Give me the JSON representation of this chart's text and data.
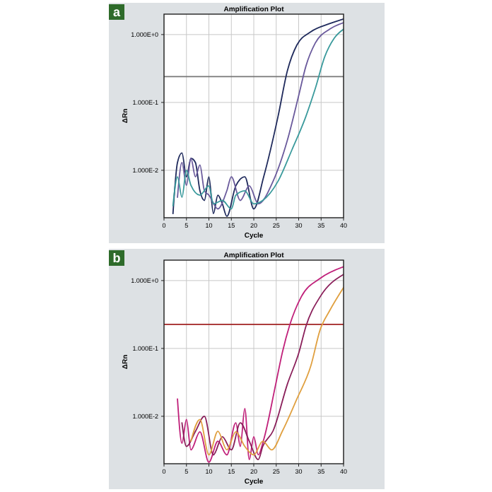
{
  "chart_data": [
    {
      "type": "line",
      "title": "Amplification Plot",
      "xlabel": "Cycle",
      "ylabel": "ΔRn",
      "annotations": [
        "a"
      ],
      "log": "y",
      "grid": true,
      "marker": "none",
      "line_style": "solid",
      "xlim": [
        0,
        40
      ],
      "xticks": [
        0,
        5,
        10,
        15,
        20,
        25,
        30,
        35,
        40
      ],
      "ylim": [
        0.002,
        2
      ],
      "yticks": [
        {
          "value": 1,
          "label": "1.000E+0"
        },
        {
          "value": 0.1,
          "label": "1.000E-1"
        },
        {
          "value": 0.01,
          "label": "1.000E-2"
        }
      ],
      "ref_lines": [
        {
          "axis": "y",
          "value": 0.24,
          "color": "#777777"
        }
      ],
      "series": [
        {
          "color": "#1f2a5c",
          "x": [
            2,
            3,
            4,
            5,
            6,
            7,
            8,
            9,
            10,
            11,
            12,
            13,
            14,
            16,
            18,
            20,
            22.2,
            25.4,
            27.5,
            29.6,
            32.7,
            36.9,
            40
          ],
          "values": [
            0.0023,
            0.013,
            0.018,
            0.008,
            0.015,
            0.013,
            0.005,
            0.0036,
            0.008,
            0.0023,
            0.0043,
            0.0032,
            0.0021,
            0.0059,
            0.008,
            0.0027,
            0.008,
            0.062,
            0.295,
            0.7,
            1.1,
            1.45,
            1.7
          ]
        },
        {
          "color": "#6a5a9c",
          "x": [
            3,
            4,
            5,
            6,
            7,
            8,
            9,
            10,
            12,
            14,
            15,
            17,
            19,
            21,
            24.3,
            27.5,
            30.1,
            31.6,
            33.7,
            36.9,
            40
          ],
          "values": [
            0.004,
            0.013,
            0.006,
            0.015,
            0.008,
            0.012,
            0.005,
            0.0043,
            0.0027,
            0.005,
            0.008,
            0.0036,
            0.0059,
            0.0032,
            0.0069,
            0.028,
            0.134,
            0.34,
            0.75,
            1.2,
            1.5
          ]
        },
        {
          "color": "#3a9a9c",
          "x": [
            2,
            3,
            4,
            5,
            6,
            8,
            10,
            11,
            13,
            15,
            16,
            18,
            20,
            22,
            25.4,
            28.5,
            31.6,
            33.7,
            35.8,
            37.9,
            40
          ],
          "values": [
            0.003,
            0.008,
            0.004,
            0.01,
            0.006,
            0.0043,
            0.0059,
            0.0032,
            0.0036,
            0.0027,
            0.0043,
            0.005,
            0.0032,
            0.0036,
            0.0069,
            0.02,
            0.062,
            0.16,
            0.47,
            0.88,
            1.2
          ]
        }
      ]
    },
    {
      "type": "line",
      "title": "Amplification Plot",
      "xlabel": "Cycle",
      "ylabel": "ΔRn",
      "annotations": [
        "b"
      ],
      "log": "y",
      "grid": true,
      "marker": "none",
      "line_style": "solid",
      "xlim": [
        0,
        40
      ],
      "xticks": [
        0,
        5,
        10,
        15,
        20,
        25,
        30,
        35,
        40
      ],
      "ylim": [
        0.002,
        2
      ],
      "yticks": [
        {
          "value": 1,
          "label": "1.000E+0"
        },
        {
          "value": 0.1,
          "label": "1.000E-1"
        },
        {
          "value": 0.01,
          "label": "1.000E-2"
        }
      ],
      "ref_lines": [
        {
          "axis": "y",
          "value": 0.226,
          "color": "#a02020"
        }
      ],
      "series": [
        {
          "color": "#c0207a",
          "x": [
            3,
            4,
            5,
            6,
            8,
            10,
            12,
            14,
            16,
            17,
            18,
            19,
            20,
            21,
            22.2,
            24.9,
            26.4,
            28,
            30.6,
            34.8,
            40
          ],
          "values": [
            0.018,
            0.004,
            0.009,
            0.0032,
            0.0059,
            0.0021,
            0.0043,
            0.0027,
            0.008,
            0.0036,
            0.013,
            0.0023,
            0.005,
            0.0027,
            0.0045,
            0.03,
            0.089,
            0.22,
            0.58,
            1.08,
            1.6
          ]
        },
        {
          "color": "#8a1f5a",
          "x": [
            4,
            5,
            7,
            9,
            11,
            13,
            15,
            17,
            19,
            21,
            22,
            24.3,
            27.5,
            30.1,
            31.6,
            34.8,
            40
          ],
          "values": [
            0.008,
            0.0036,
            0.006,
            0.01,
            0.0027,
            0.005,
            0.0032,
            0.008,
            0.0043,
            0.0023,
            0.0036,
            0.0061,
            0.03,
            0.089,
            0.21,
            0.58,
            1.23
          ]
        },
        {
          "color": "#e0a040",
          "x": [
            6,
            8,
            10,
            12,
            14,
            16,
            18,
            20,
            22,
            24,
            26.4,
            29.6,
            32.7,
            34.8,
            36.9,
            40
          ],
          "values": [
            0.0043,
            0.009,
            0.0027,
            0.006,
            0.0032,
            0.0059,
            0.0036,
            0.0027,
            0.0043,
            0.0032,
            0.0061,
            0.018,
            0.055,
            0.19,
            0.36,
            0.79
          ]
        }
      ]
    }
  ]
}
